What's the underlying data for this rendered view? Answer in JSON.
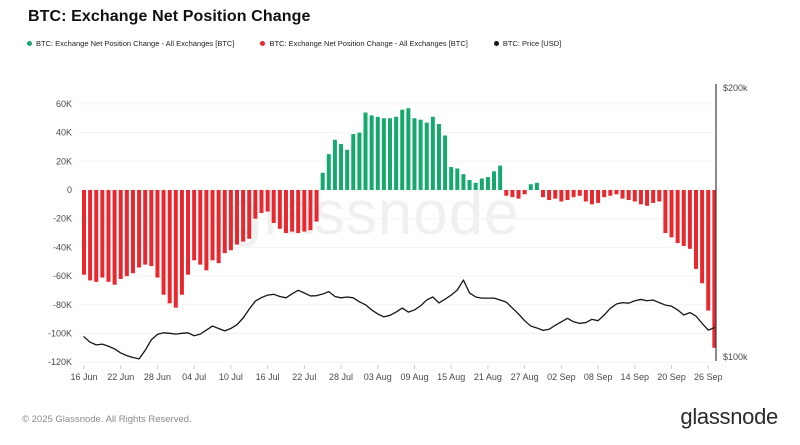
{
  "header": {
    "title": "BTC: Exchange Net Position Change"
  },
  "legend": [
    {
      "label": "BTC: Exchange Net Position Change - All Exchanges [BTC]",
      "color": "#16a96e"
    },
    {
      "label": "BTC: Exchange Net Position Change - All Exchanges [BTC]",
      "color": "#e8282f"
    },
    {
      "label": "BTC: Price [USD]",
      "color": "#161616"
    }
  ],
  "watermark": "glassnode",
  "footer": {
    "copyright": "© 2025 Glassnode. All Rights Reserved.",
    "wordmark": "glassnode"
  },
  "chart_data": {
    "type": "bar",
    "title": "BTC: Exchange Net Position Change",
    "x_range": [
      "16 Jun",
      "27 Sep"
    ],
    "x_tick_labels": [
      "16 Jun",
      "22 Jun",
      "28 Jun",
      "04 Jul",
      "10 Jul",
      "16 Jul",
      "22 Jul",
      "28 Jul",
      "03 Aug",
      "09 Aug",
      "15 Aug",
      "21 Aug",
      "27 Aug",
      "02 Sep",
      "08 Sep",
      "14 Sep",
      "20 Sep",
      "26 Sep"
    ],
    "points_per_tick": 6,
    "grid": true,
    "left_axis": {
      "unit": "BTC",
      "ylim": [
        -125000,
        71000
      ],
      "tick_labels": [
        "60K",
        "40K",
        "20K",
        "0",
        "-20K",
        "-40K",
        "-60K",
        "-80K",
        "-100K",
        "-120K"
      ],
      "tick_values": [
        60000,
        40000,
        20000,
        0,
        -20000,
        -40000,
        -60000,
        -80000,
        -100000,
        -120000
      ]
    },
    "right_axis": {
      "unit": "USD",
      "ylim": [
        100000,
        200000
      ],
      "tick_labels": [
        "$200k",
        "$100k"
      ],
      "tick_values": [
        200000,
        100000
      ]
    },
    "series": [
      {
        "name": "BTC: Exchange Net Position Change - All Exchanges [BTC]",
        "type": "bar",
        "axis": "left",
        "positive_color": "#16a96e",
        "negative_color": "#e8282f",
        "values": [
          -59000,
          -63000,
          -64000,
          -61000,
          -64000,
          -66000,
          -62000,
          -60000,
          -58000,
          -54000,
          -52000,
          -53000,
          -61000,
          -73000,
          -79000,
          -82000,
          -73000,
          -59000,
          -49000,
          -52000,
          -56000,
          -49000,
          -51000,
          -44000,
          -42000,
          -38000,
          -36000,
          -34000,
          -20000,
          -16000,
          -15000,
          -23000,
          -27000,
          -30000,
          -29000,
          -30000,
          -29000,
          -28000,
          -22000,
          12000,
          25000,
          35000,
          32000,
          28000,
          39000,
          40000,
          54000,
          52000,
          51000,
          50000,
          50000,
          51000,
          56000,
          57000,
          50000,
          49000,
          47000,
          51000,
          46000,
          38000,
          16000,
          15000,
          11000,
          7000,
          5000,
          8000,
          9000,
          13000,
          17000,
          -4000,
          -5000,
          -6000,
          -3000,
          4000,
          5000,
          -5000,
          -7000,
          -6000,
          -8000,
          -7000,
          -5000,
          -4000,
          -8000,
          -10000,
          -9000,
          -5000,
          -4000,
          -3000,
          -6000,
          -7000,
          -8000,
          -10000,
          -11000,
          -9000,
          -8000,
          -30000,
          -33000,
          -37000,
          -39000,
          -41000,
          -55000,
          -65000,
          -84000,
          -110000
        ]
      },
      {
        "name": "BTC: Price [USD]",
        "type": "line",
        "axis": "right",
        "color": "#161616",
        "values": [
          107500,
          105500,
          104500,
          104800,
          104000,
          103000,
          101500,
          100500,
          99800,
          99300,
          102500,
          106400,
          108400,
          109000,
          108800,
          108500,
          108800,
          109000,
          107900,
          108500,
          110000,
          111500,
          110600,
          109700,
          110600,
          112000,
          114500,
          117800,
          120800,
          122100,
          123000,
          123300,
          122500,
          122000,
          123500,
          124800,
          123800,
          122700,
          122800,
          123400,
          124300,
          122500,
          122000,
          122300,
          122000,
          120500,
          119400,
          117500,
          116000,
          114900,
          115500,
          116700,
          118200,
          116700,
          117500,
          119000,
          121200,
          122300,
          120100,
          121500,
          123000,
          124900,
          128600,
          123800,
          122300,
          121900,
          121900,
          121900,
          121200,
          120400,
          118200,
          116000,
          113500,
          111500,
          110800,
          109900,
          110300,
          111800,
          113100,
          114400,
          113100,
          112500,
          112800,
          114000,
          113500,
          115600,
          118100,
          119700,
          120200,
          120000,
          120900,
          121400,
          120900,
          121200,
          120200,
          119300,
          118900,
          117500,
          115600,
          116500,
          115200,
          112500,
          110000,
          110900
        ]
      }
    ],
    "colors": {
      "grid": "#f3f3f3",
      "axis_text": "#4a4a4a",
      "right_axis_line": "#3c3c3c",
      "tick_mark": "#cccccc"
    }
  }
}
